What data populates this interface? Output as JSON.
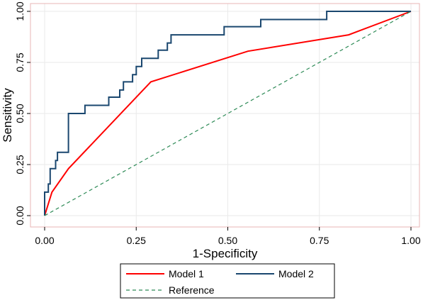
{
  "chart_data": {
    "type": "line",
    "title": "",
    "xlabel": "1-Specificity",
    "ylabel": "Sensitivity",
    "xlim": [
      0,
      1
    ],
    "ylim": [
      0,
      1
    ],
    "x_ticks": [
      0,
      0.25,
      0.5,
      0.75,
      1
    ],
    "y_ticks": [
      0,
      0.25,
      0.5,
      0.75,
      1
    ],
    "x_tick_labels": [
      "0.00",
      "0.25",
      "0.50",
      "0.75",
      "1.00"
    ],
    "y_tick_labels": [
      "0.00",
      "0.25",
      "0.50",
      "0.75",
      "1.00"
    ],
    "grid": true,
    "legend_position": "bottom",
    "series": [
      {
        "name": "Model 1",
        "color": "#ff0000",
        "style": "solid",
        "x": [
          0,
          0.02,
          0.065,
          0.29,
          0.555,
          0.83,
          1
        ],
        "y": [
          0,
          0.115,
          0.23,
          0.655,
          0.805,
          0.885,
          1
        ]
      },
      {
        "name": "Model 2",
        "color": "#1a476f",
        "style": "step",
        "x": [
          0,
          0,
          0.01,
          0.01,
          0.015,
          0.015,
          0.03,
          0.03,
          0.035,
          0.035,
          0.065,
          0.065,
          0.11,
          0.11,
          0.175,
          0.175,
          0.205,
          0.205,
          0.215,
          0.215,
          0.24,
          0.24,
          0.25,
          0.25,
          0.265,
          0.265,
          0.31,
          0.31,
          0.335,
          0.335,
          0.345,
          0.345,
          0.49,
          0.49,
          0.59,
          0.59,
          0.77,
          0.77,
          0.98,
          0.98,
          1
        ],
        "y": [
          0,
          0.115,
          0.115,
          0.155,
          0.155,
          0.23,
          0.23,
          0.27,
          0.27,
          0.31,
          0.31,
          0.5,
          0.5,
          0.54,
          0.54,
          0.58,
          0.58,
          0.615,
          0.615,
          0.655,
          0.655,
          0.69,
          0.69,
          0.73,
          0.73,
          0.77,
          0.77,
          0.81,
          0.81,
          0.845,
          0.845,
          0.885,
          0.885,
          0.925,
          0.925,
          0.96,
          0.96,
          1,
          1,
          1,
          1
        ]
      },
      {
        "name": "Reference",
        "color": "#2e8b57",
        "style": "dashed",
        "x": [
          0,
          1
        ],
        "y": [
          0,
          1
        ]
      }
    ]
  }
}
